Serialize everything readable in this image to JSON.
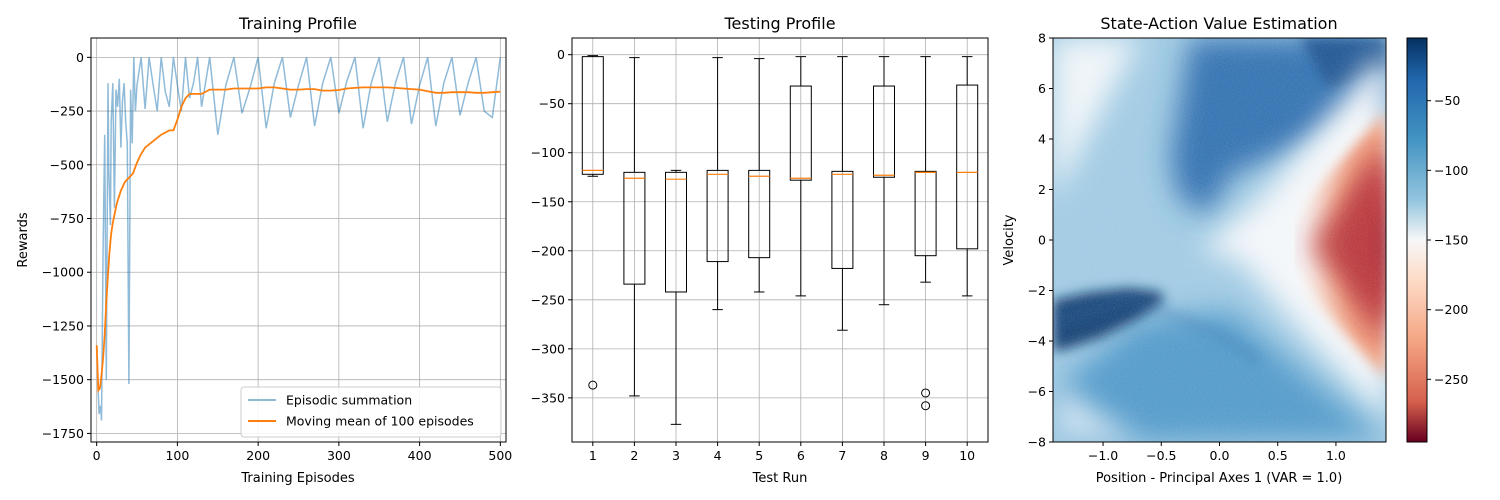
{
  "chart_data": [
    {
      "type": "line",
      "title": "Training Profile",
      "xlabel": "Training Episodes",
      "ylabel": "Rewards",
      "xlim": [
        -7,
        507
      ],
      "ylim": [
        -1790,
        90
      ],
      "xticks": [
        0,
        100,
        200,
        300,
        400,
        500
      ],
      "yticks": [
        0,
        -250,
        -500,
        -750,
        -1000,
        -1250,
        -1500,
        -1750
      ],
      "ytick_labels": [
        "0",
        "−250",
        "−500",
        "−750",
        "−1000",
        "−1250",
        "−1500",
        "−1750"
      ],
      "grid": true,
      "legend": "lower-right",
      "series": [
        {
          "name": "Episodic summation",
          "color": "#1f77b4",
          "alpha": 0.5,
          "approximation": "noisy rewards oscillating between about -250 and 0 after episode 40",
          "x": [
            0,
            2,
            3,
            5,
            6,
            8,
            10,
            12,
            14,
            15,
            17,
            18,
            20,
            22,
            24,
            26,
            28,
            30,
            32,
            34,
            36,
            38,
            40,
            42,
            44,
            46,
            48,
            50,
            55,
            60,
            65,
            70,
            75,
            80,
            85,
            90,
            95,
            100,
            105,
            110,
            115,
            120,
            125,
            130,
            140,
            150,
            160,
            170,
            180,
            190,
            200,
            210,
            220,
            230,
            240,
            250,
            260,
            270,
            280,
            290,
            300,
            310,
            320,
            330,
            340,
            350,
            360,
            370,
            380,
            390,
            400,
            410,
            420,
            430,
            440,
            450,
            460,
            470,
            480,
            490,
            500
          ],
          "y": [
            -1340,
            -1560,
            -1660,
            -1620,
            -1690,
            -890,
            -360,
            -1500,
            -120,
            -520,
            -780,
            -300,
            -120,
            -700,
            -150,
            -230,
            -100,
            -420,
            -200,
            -120,
            -300,
            -400,
            -1520,
            -150,
            -400,
            0,
            -250,
            -130,
            0,
            -240,
            0,
            -130,
            -250,
            0,
            -160,
            -230,
            0,
            -130,
            -250,
            0,
            -190,
            -120,
            0,
            -230,
            0,
            -360,
            -130,
            0,
            -260,
            -140,
            0,
            -330,
            -120,
            0,
            -280,
            -130,
            0,
            -320,
            -120,
            0,
            -260,
            -110,
            0,
            -330,
            -120,
            0,
            -300,
            -120,
            0,
            -310,
            -130,
            0,
            -320,
            -120,
            0,
            -270,
            -120,
            0,
            -250,
            -280,
            0
          ]
        },
        {
          "name": "Moving mean of 100 episodes",
          "color": "#ff7f0e",
          "x": [
            0,
            2,
            4,
            6,
            8,
            10,
            12,
            14,
            16,
            18,
            20,
            25,
            30,
            35,
            40,
            45,
            50,
            55,
            60,
            70,
            80,
            90,
            95,
            100,
            105,
            110,
            115,
            120,
            130,
            140,
            150,
            160,
            170,
            180,
            190,
            200,
            210,
            220,
            230,
            240,
            250,
            260,
            270,
            280,
            290,
            300,
            310,
            320,
            330,
            340,
            350,
            360,
            370,
            380,
            390,
            400,
            410,
            420,
            430,
            440,
            450,
            460,
            470,
            480,
            490,
            500
          ],
          "y": [
            -1340,
            -1550,
            -1540,
            -1480,
            -1400,
            -1290,
            -1140,
            -1010,
            -900,
            -820,
            -770,
            -680,
            -620,
            -580,
            -560,
            -540,
            -490,
            -450,
            -420,
            -390,
            -360,
            -340,
            -340,
            -290,
            -230,
            -190,
            -170,
            -170,
            -170,
            -150,
            -150,
            -150,
            -145,
            -145,
            -145,
            -145,
            -140,
            -140,
            -145,
            -150,
            -150,
            -148,
            -148,
            -155,
            -155,
            -152,
            -145,
            -142,
            -140,
            -140,
            -140,
            -140,
            -142,
            -145,
            -148,
            -150,
            -158,
            -165,
            -165,
            -162,
            -162,
            -162,
            -165,
            -165,
            -162,
            -160
          ]
        }
      ]
    },
    {
      "type": "box",
      "title": "Testing Profile",
      "xlabel": "Test Run",
      "ylabel": "",
      "ylim": [
        -395,
        17
      ],
      "yticks": [
        0,
        -50,
        -100,
        -150,
        -200,
        -250,
        -300,
        -350
      ],
      "ytick_labels": [
        "0",
        "−50",
        "−100",
        "−150",
        "−200",
        "−250",
        "−300",
        "−350"
      ],
      "grid": true,
      "categories": [
        "1",
        "2",
        "3",
        "4",
        "5",
        "6",
        "7",
        "8",
        "9",
        "10"
      ],
      "boxes": [
        {
          "whislo": -124,
          "q1": -122,
          "med": -118,
          "q3": -2,
          "whishi": -1,
          "fliers": [
            -337
          ]
        },
        {
          "whislo": -348,
          "q1": -234,
          "med": -126,
          "q3": -120,
          "whishi": -3,
          "fliers": []
        },
        {
          "whislo": -377,
          "q1": -242,
          "med": -127,
          "q3": -120,
          "whishi": -118,
          "fliers": []
        },
        {
          "whislo": -260,
          "q1": -211,
          "med": -122,
          "q3": -118,
          "whishi": -3,
          "fliers": []
        },
        {
          "whislo": -242,
          "q1": -207,
          "med": -124,
          "q3": -118,
          "whishi": -4,
          "fliers": []
        },
        {
          "whislo": -246,
          "q1": -128,
          "med": -126,
          "q3": -32,
          "whishi": -2,
          "fliers": []
        },
        {
          "whislo": -281,
          "q1": -218,
          "med": -122,
          "q3": -119,
          "whishi": -2,
          "fliers": []
        },
        {
          "whislo": -255,
          "q1": -125,
          "med": -123,
          "q3": -32,
          "whishi": -2,
          "fliers": []
        },
        {
          "whislo": -232,
          "q1": -205,
          "med": -120,
          "q3": -119,
          "whishi": -2,
          "fliers": [
            -345,
            -358
          ]
        },
        {
          "whislo": -246,
          "q1": -198,
          "med": -120,
          "q3": -31,
          "whishi": -2,
          "fliers": []
        }
      ]
    },
    {
      "type": "heatmap",
      "title": "State-Action Value Estimation",
      "xlabel": "Position - Principal Axes 1 (VAR = 1.0)",
      "ylabel": "Velocity",
      "xlim": [
        -1.43,
        1.43
      ],
      "ylim": [
        -8,
        8
      ],
      "xticks": [
        -1.0,
        -0.5,
        0.0,
        0.5,
        1.0
      ],
      "xtick_labels": [
        "−1.0",
        "−0.5",
        "0.0",
        "0.5",
        "1.0"
      ],
      "yticks": [
        -8,
        -6,
        -4,
        -2,
        0,
        2,
        4,
        6,
        8
      ],
      "ytick_labels": [
        "−8",
        "−6",
        "−4",
        "−2",
        "0",
        "2",
        "4",
        "6",
        "8"
      ],
      "colormap": "RdBu",
      "value_range": [
        -295,
        -5
      ],
      "colorbar_ticks": [
        -50,
        -100,
        -150,
        -200,
        -250
      ],
      "colorbar_labels": [
        "−50",
        "−100",
        "−150",
        "−200",
        "−250"
      ]
    }
  ]
}
